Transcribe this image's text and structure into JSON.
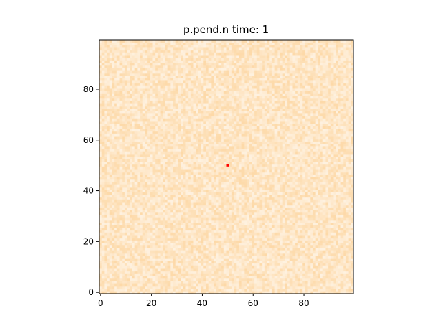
{
  "chart_data": {
    "type": "heatmap",
    "title": "p.pend.n time: 1",
    "xlabel": "",
    "ylabel": "",
    "grid_size": [
      100,
      100
    ],
    "xlim": [
      -0.5,
      99.5
    ],
    "ylim": [
      -0.5,
      99.5
    ],
    "origin": "lower",
    "x_ticks": [
      0,
      20,
      40,
      60,
      80
    ],
    "y_ticks": [
      0,
      20,
      40,
      60,
      80
    ],
    "x_tick_labels": [
      "0",
      "20",
      "40",
      "60",
      "80"
    ],
    "y_tick_labels": [
      "0",
      "20",
      "40",
      "60",
      "80"
    ],
    "grid": false,
    "colormap_low": "#ffffff",
    "colormap_high": "#fdd9a8",
    "field": "per-cell random noise in the light orange range",
    "highlight_cells": [
      {
        "x": 50,
        "y": 50,
        "color": "#ff0000"
      }
    ]
  }
}
